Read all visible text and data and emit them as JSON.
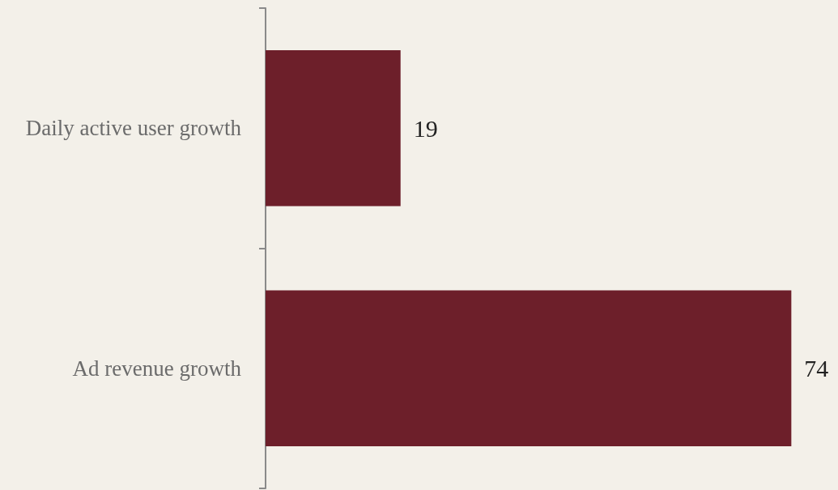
{
  "chart_data": {
    "type": "bar",
    "orientation": "horizontal",
    "categories": [
      "Daily active user growth",
      "Ad revenue growth"
    ],
    "values": [
      19,
      74
    ],
    "color": "#6d1f2a",
    "data_labels": true,
    "grid": false
  }
}
